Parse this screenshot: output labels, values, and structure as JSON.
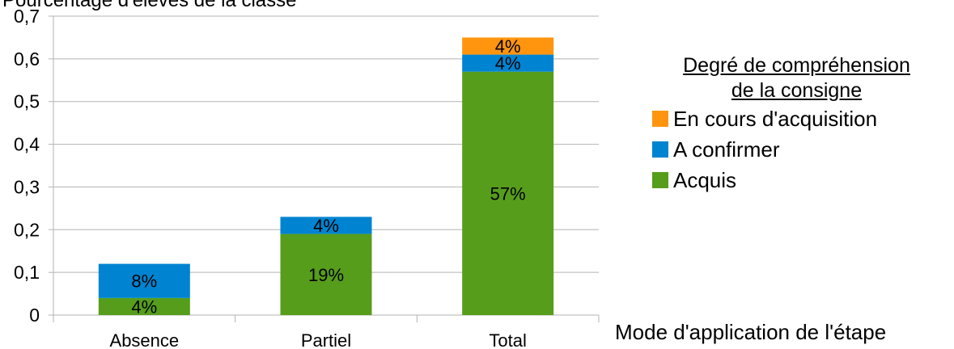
{
  "chart_data": {
    "type": "bar",
    "stacked": true,
    "categories": [
      "Absence",
      "Partiel",
      "Total"
    ],
    "series": [
      {
        "name": "Acquis",
        "color": "#579d1c",
        "values": [
          0.04,
          0.19,
          0.57
        ],
        "labels": [
          "4%",
          "19%",
          "57%"
        ]
      },
      {
        "name": "A confirmer",
        "color": "#0084d1",
        "values": [
          0.08,
          0.04,
          0.04
        ],
        "labels": [
          "8%",
          "4%",
          "4%"
        ]
      },
      {
        "name": "En cours d'acquisition",
        "color": "#ff950e",
        "values": [
          0,
          0,
          0.04
        ],
        "labels": [
          "",
          "",
          "4%"
        ]
      }
    ],
    "ylabel": "Pourcentage d'élèves de la classe",
    "xlabel": "Mode d'application de l'étape",
    "ylim": [
      0,
      0.7
    ],
    "yticks": [
      "0",
      "0,1",
      "0,2",
      "0,3",
      "0,4",
      "0,5",
      "0,6",
      "0,7"
    ],
    "grid": true,
    "legend": {
      "title_lines": [
        "Degré de compréhension",
        "de la consigne"
      ],
      "position": "right",
      "items": [
        "En cours d'acquisition",
        "A confirmer",
        "Acquis"
      ],
      "colors": [
        "#ff950e",
        "#0084d1",
        "#579d1c"
      ]
    }
  }
}
